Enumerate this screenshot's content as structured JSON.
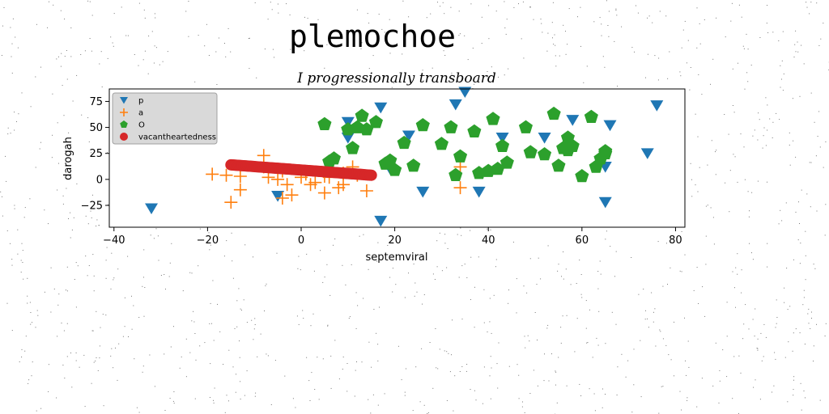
{
  "figure": {
    "title": "plemochoe"
  },
  "chart_data": {
    "type": "scatter",
    "title": "I progressionally transboard",
    "xlabel": "septemviral",
    "ylabel": "darogah",
    "xlim": [
      -41,
      82
    ],
    "ylim": [
      -46,
      87
    ],
    "xticks": [
      -40,
      -20,
      0,
      20,
      40,
      60,
      80
    ],
    "xtick_labels": [
      "−40",
      "−20",
      "0",
      "20",
      "40",
      "60",
      "80"
    ],
    "yticks": [
      -25,
      0,
      25,
      50,
      75
    ],
    "ytick_labels": [
      "−25",
      "0",
      "25",
      "50",
      "75"
    ],
    "grid": false,
    "legend_position": "upper-left",
    "series": [
      {
        "name": "p",
        "marker": "triangle-down",
        "color": "#1f77b4",
        "x": [
          -35,
          -32,
          -5,
          10,
          10,
          17,
          17,
          19,
          23,
          26,
          33,
          35,
          38,
          43,
          52,
          58,
          65,
          65,
          66,
          74,
          76
        ],
        "y": [
          55,
          -28,
          -16,
          55,
          40,
          69,
          -40,
          10,
          42,
          -12,
          72,
          84,
          -12,
          40,
          40,
          57,
          12,
          -22,
          52,
          25,
          71
        ]
      },
      {
        "name": "a",
        "marker": "plus",
        "color": "#ff7f0e",
        "x": [
          -19,
          -16,
          -15,
          -13,
          -13,
          -8,
          -8,
          -7,
          -5,
          -4,
          -4,
          -3,
          -2,
          0,
          1,
          2,
          3,
          5,
          5,
          6,
          8,
          9,
          9,
          11,
          12,
          14,
          34,
          34
        ],
        "y": [
          5,
          4,
          -22,
          3,
          -10,
          23,
          12,
          2,
          0,
          -18,
          8,
          -5,
          -15,
          2,
          5,
          -5,
          -3,
          -13,
          3,
          2,
          -8,
          6,
          -5,
          12,
          4,
          -11,
          12,
          -8
        ],
        "note": "approximate readings"
      },
      {
        "name": "O",
        "marker": "pentagon",
        "color": "#2ca02c",
        "x": [
          5,
          6,
          7,
          10,
          11,
          12,
          13,
          14,
          16,
          18,
          19,
          20,
          22,
          24,
          26,
          30,
          32,
          33,
          34,
          37,
          38,
          40,
          41,
          42,
          43,
          44,
          48,
          49,
          52,
          54,
          55,
          56,
          57,
          57,
          58,
          60,
          62,
          63,
          64,
          65,
          65
        ],
        "y": [
          53,
          17,
          20,
          48,
          30,
          50,
          61,
          48,
          55,
          15,
          18,
          9,
          35,
          13,
          52,
          34,
          50,
          4,
          22,
          46,
          6,
          8,
          58,
          10,
          32,
          16,
          50,
          26,
          24,
          63,
          13,
          30,
          28,
          40,
          32,
          3,
          60,
          12,
          20,
          25,
          27
        ],
        "note": "approximate readings"
      },
      {
        "name": "vacantheartedness",
        "marker": "circle",
        "color": "#d62728",
        "x_start": -15,
        "x_end": 15,
        "y_start": 14,
        "y_end": 4,
        "count": 100,
        "note": "dense band of points forming a straight line"
      }
    ]
  }
}
